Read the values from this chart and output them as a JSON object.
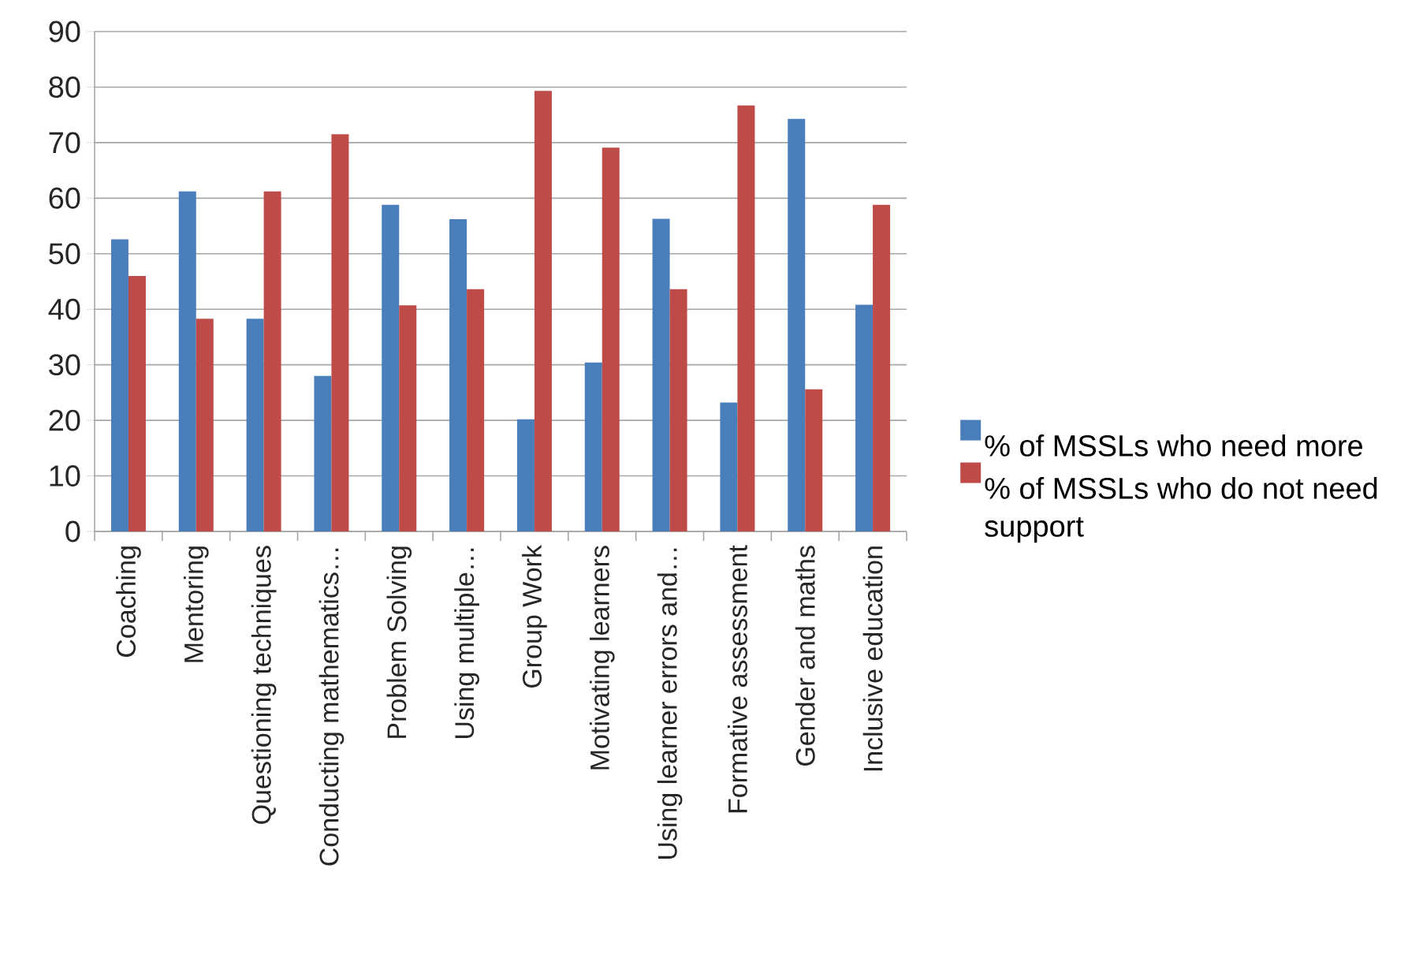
{
  "chart_data": {
    "type": "bar",
    "categories": [
      "Coaching",
      "Mentoring",
      "Questioning techniques",
      "Conducting mathematics…",
      "Problem Solving",
      "Using multiple…",
      "Group Work",
      "Motivating learners",
      "Using learner errors and…",
      "Formative assessment",
      "Gender and maths",
      "Inclusive education"
    ],
    "series": [
      {
        "name": "% of MSSLs who need more",
        "color": "#4a7ebb",
        "values": [
          52.6,
          61.2,
          38.3,
          28.0,
          58.8,
          56.2,
          20.2,
          30.4,
          56.3,
          23.2,
          74.3,
          40.8
        ]
      },
      {
        "name": "% of MSSLs who do not need support",
        "color": "#be4b48",
        "values": [
          46.0,
          38.3,
          61.2,
          71.5,
          40.7,
          43.6,
          79.3,
          69.1,
          43.6,
          76.7,
          25.6,
          58.8
        ]
      }
    ],
    "ylim": [
      0,
      90
    ],
    "yticks": [
      0,
      10,
      20,
      30,
      40,
      50,
      60,
      70,
      80,
      90
    ],
    "grid": "y",
    "legend": "right"
  }
}
